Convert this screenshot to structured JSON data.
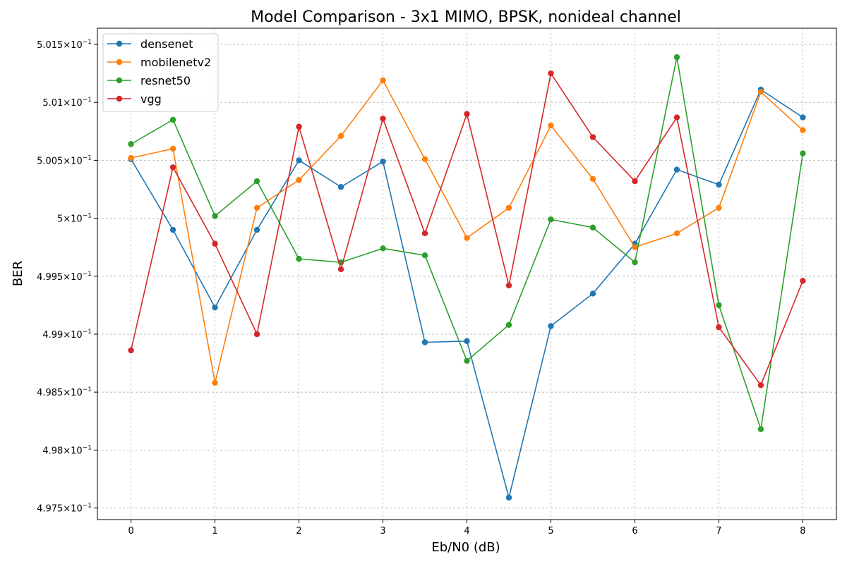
{
  "chart_data": {
    "type": "line",
    "title": "Model Comparison - 3x1 MIMO, BPSK, nonideal channel",
    "xlabel": "Eb/N0 (dB)",
    "ylabel": "BER",
    "xlim": [
      -0.4,
      8.4
    ],
    "ylim": [
      0.4974,
      0.50164
    ],
    "grid": true,
    "legend_position": "top-left",
    "x_ticks": [
      0,
      1,
      2,
      3,
      4,
      5,
      6,
      7,
      8
    ],
    "x_tick_labels": [
      "0",
      "1",
      "2",
      "3",
      "4",
      "5",
      "6",
      "7",
      "8"
    ],
    "y_ticks": [
      0.4975,
      0.498,
      0.4985,
      0.499,
      0.4995,
      0.5,
      0.5005,
      0.501,
      0.5015
    ],
    "y_tick_labels": [
      {
        "mant": "4.975",
        "exp": "-1"
      },
      {
        "mant": "4.98",
        "exp": "-1"
      },
      {
        "mant": "4.985",
        "exp": "-1"
      },
      {
        "mant": "4.99",
        "exp": "-1"
      },
      {
        "mant": "4.995",
        "exp": "-1"
      },
      {
        "mant": "5",
        "exp": "-1"
      },
      {
        "mant": "5.005",
        "exp": "-1"
      },
      {
        "mant": "5.01",
        "exp": "-1"
      },
      {
        "mant": "5.015",
        "exp": "-1"
      }
    ],
    "x": [
      0,
      0.5,
      1,
      1.5,
      2,
      2.5,
      3,
      3.5,
      4,
      4.5,
      5,
      5.5,
      6,
      6.5,
      7,
      7.5,
      8
    ],
    "series": [
      {
        "name": "densenet",
        "color": "#1f77b4",
        "values": [
          0.50051,
          0.4999,
          0.49923,
          0.4999,
          0.5005,
          0.50027,
          0.50049,
          0.49893,
          0.49894,
          0.49759,
          0.49907,
          0.49935,
          0.49978,
          0.50042,
          0.50029,
          0.50111,
          0.50087
        ]
      },
      {
        "name": "mobilenetv2",
        "color": "#ff7f0e",
        "values": [
          0.50052,
          0.5006,
          0.49858,
          0.50009,
          0.50033,
          0.50071,
          0.50119,
          0.50051,
          0.49983,
          0.50009,
          0.5008,
          0.50034,
          0.49975,
          0.49987,
          0.50009,
          0.50109,
          0.50076
        ]
      },
      {
        "name": "resnet50",
        "color": "#2ca02c",
        "values": [
          0.50064,
          0.50085,
          0.50002,
          0.50032,
          0.49965,
          0.49962,
          0.49974,
          0.49968,
          0.49877,
          0.49908,
          0.49999,
          0.49992,
          0.49962,
          0.50139,
          0.49925,
          0.49818,
          0.50056
        ]
      },
      {
        "name": "vgg",
        "color": "#d62728",
        "values": [
          0.49886,
          0.50044,
          0.49978,
          0.499,
          0.50079,
          0.49956,
          0.50086,
          0.49987,
          0.5009,
          0.49942,
          0.50125,
          0.5007,
          0.50032,
          0.50087,
          0.49906,
          0.49856,
          0.49946
        ]
      }
    ]
  }
}
